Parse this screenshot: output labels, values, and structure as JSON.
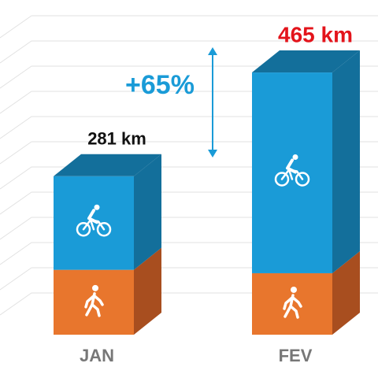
{
  "chart_data": {
    "type": "stacked-bar-3d",
    "categories": [
      "JAN",
      "FEV"
    ],
    "series": [
      {
        "color": "#e8762d",
        "side_color": "#a84e1f",
        "icon": "walk",
        "values": [
          115,
          109
        ]
      },
      {
        "color": "#1a9bd7",
        "side_color": "#136f9b",
        "icon": "bike",
        "values": [
          166,
          356
        ]
      }
    ],
    "totals": [
      281,
      465
    ],
    "total_labels": [
      "281 km",
      "465 km"
    ],
    "total_label_colors": [
      "#111111",
      "#e3141b"
    ],
    "annotation": "+65%",
    "annotation_color": "#1a9bd7"
  }
}
